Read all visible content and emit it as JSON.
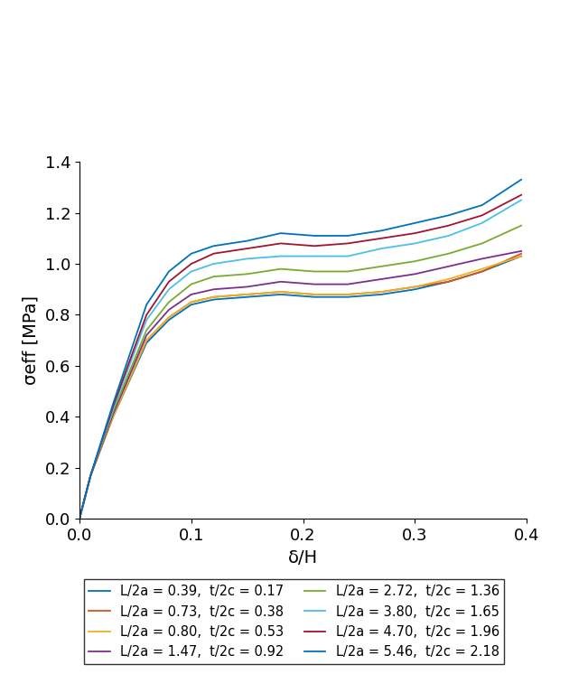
{
  "chart_data": {
    "type": "line",
    "x_label": "δ/H",
    "y_label": "σeff [MPa]",
    "x": [
      0,
      0.01,
      0.03,
      0.06,
      0.08,
      0.1,
      0.12,
      0.15,
      0.18,
      0.21,
      0.24,
      0.27,
      0.3,
      0.33,
      0.36,
      0.395
    ],
    "series": [
      {
        "name": "L/2a = 0.39,  t/2c = 0.17",
        "color": "#0072BD",
        "values": [
          0,
          0.17,
          0.4,
          0.69,
          0.78,
          0.84,
          0.86,
          0.87,
          0.88,
          0.87,
          0.87,
          0.88,
          0.9,
          0.93,
          0.97,
          1.03
        ]
      },
      {
        "name": "L/2a = 0.73,  t/2c = 0.38",
        "color": "#D95319",
        "values": [
          0,
          0.17,
          0.4,
          0.7,
          0.79,
          0.85,
          0.87,
          0.88,
          0.89,
          0.88,
          0.88,
          0.89,
          0.91,
          0.93,
          0.97,
          1.04
        ]
      },
      {
        "name": "L/2a = 0.80,  t/2c = 0.53",
        "color": "#EDB120",
        "values": [
          0,
          0.17,
          0.4,
          0.7,
          0.79,
          0.85,
          0.87,
          0.88,
          0.89,
          0.88,
          0.88,
          0.89,
          0.91,
          0.94,
          0.98,
          1.03
        ]
      },
      {
        "name": "L/2a = 1.47,  t/2c = 0.92",
        "color": "#7E2F8E",
        "values": [
          0,
          0.17,
          0.41,
          0.72,
          0.82,
          0.88,
          0.9,
          0.91,
          0.93,
          0.92,
          0.92,
          0.94,
          0.96,
          0.99,
          1.02,
          1.05
        ]
      },
      {
        "name": "L/2a = 2.72,  t/2c = 1.36",
        "color": "#77AC30",
        "values": [
          0,
          0.17,
          0.42,
          0.74,
          0.85,
          0.92,
          0.95,
          0.96,
          0.98,
          0.97,
          0.97,
          0.99,
          1.01,
          1.04,
          1.08,
          1.15
        ]
      },
      {
        "name": "L/2a = 3.80,  t/2c = 1.65",
        "color": "#4DBEEE",
        "values": [
          0,
          0.17,
          0.43,
          0.78,
          0.9,
          0.97,
          1.0,
          1.02,
          1.03,
          1.03,
          1.03,
          1.06,
          1.08,
          1.11,
          1.16,
          1.25
        ]
      },
      {
        "name": "L/2a = 4.70,  t/2c = 1.96",
        "color": "#A2142F",
        "values": [
          0,
          0.17,
          0.44,
          0.8,
          0.93,
          1.0,
          1.04,
          1.06,
          1.08,
          1.07,
          1.08,
          1.1,
          1.12,
          1.15,
          1.19,
          1.27
        ]
      },
      {
        "name": "L/2a = 5.46,  t/2c = 2.18",
        "color": "#0072BD",
        "values": [
          0,
          0.17,
          0.45,
          0.84,
          0.97,
          1.04,
          1.07,
          1.09,
          1.12,
          1.11,
          1.11,
          1.13,
          1.16,
          1.19,
          1.23,
          1.33
        ]
      }
    ],
    "xlim": [
      0,
      0.4
    ],
    "xticks": [
      {
        "value": 0,
        "label": "0.0"
      },
      {
        "value": 0.1,
        "label": "0.1"
      },
      {
        "value": 0.2,
        "label": "0.2"
      },
      {
        "value": 0.3,
        "label": "0.3"
      },
      {
        "value": 0.4,
        "label": "0.4"
      }
    ],
    "ylim": [
      0,
      1.4
    ],
    "yticks": [
      {
        "value": 0,
        "label": "0.0"
      },
      {
        "value": 0.2,
        "label": "0.2"
      },
      {
        "value": 0.4,
        "label": "0.4"
      },
      {
        "value": 0.6,
        "label": "0.6"
      },
      {
        "value": 0.8,
        "label": "0.8"
      },
      {
        "value": 1.0,
        "label": "1.0"
      },
      {
        "value": 1.2,
        "label": "1.2"
      },
      {
        "value": 1.4,
        "label": "1.4"
      }
    ],
    "legend": "bottom",
    "line_style": "solid",
    "grid": false
  }
}
